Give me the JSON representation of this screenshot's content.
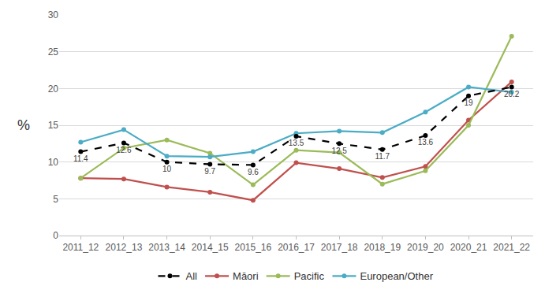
{
  "chart_data": {
    "type": "line",
    "ylabel": "%",
    "categories": [
      "2011_12",
      "2012_13",
      "2013_14",
      "2014_15",
      "2015_16",
      "2016_17",
      "2017_18",
      "2018_19",
      "2019_20",
      "2020_21",
      "2021_22"
    ],
    "series": [
      {
        "name": "All",
        "color": "#000000",
        "line_style": "dashed",
        "marker": "circle",
        "data_labels": true,
        "values": [
          11.4,
          12.6,
          10,
          9.7,
          9.6,
          13.5,
          12.5,
          11.7,
          13.6,
          19,
          20.2
        ]
      },
      {
        "name": "Māori",
        "color": "#c0504d",
        "line_style": "solid",
        "marker": "circle",
        "values": [
          7.8,
          7.7,
          6.6,
          5.9,
          4.8,
          9.9,
          9.1,
          7.9,
          9.4,
          15.7,
          20.9
        ]
      },
      {
        "name": "Pacific",
        "color": "#9bbb59",
        "line_style": "solid",
        "marker": "circle",
        "values": [
          7.8,
          11.9,
          13.0,
          11.2,
          6.9,
          11.6,
          11.3,
          7.0,
          8.8,
          15.0,
          27.1
        ]
      },
      {
        "name": "European/Other",
        "color": "#4bacc6",
        "line_style": "solid",
        "marker": "circle",
        "values": [
          12.7,
          14.4,
          10.8,
          10.7,
          11.4,
          13.9,
          14.2,
          14.0,
          16.8,
          20.2,
          19.5
        ]
      }
    ],
    "ylim": [
      0,
      30
    ],
    "yticks": [
      0,
      5,
      10,
      15,
      20,
      25,
      30
    ],
    "grid": true,
    "legend": "bottom"
  }
}
